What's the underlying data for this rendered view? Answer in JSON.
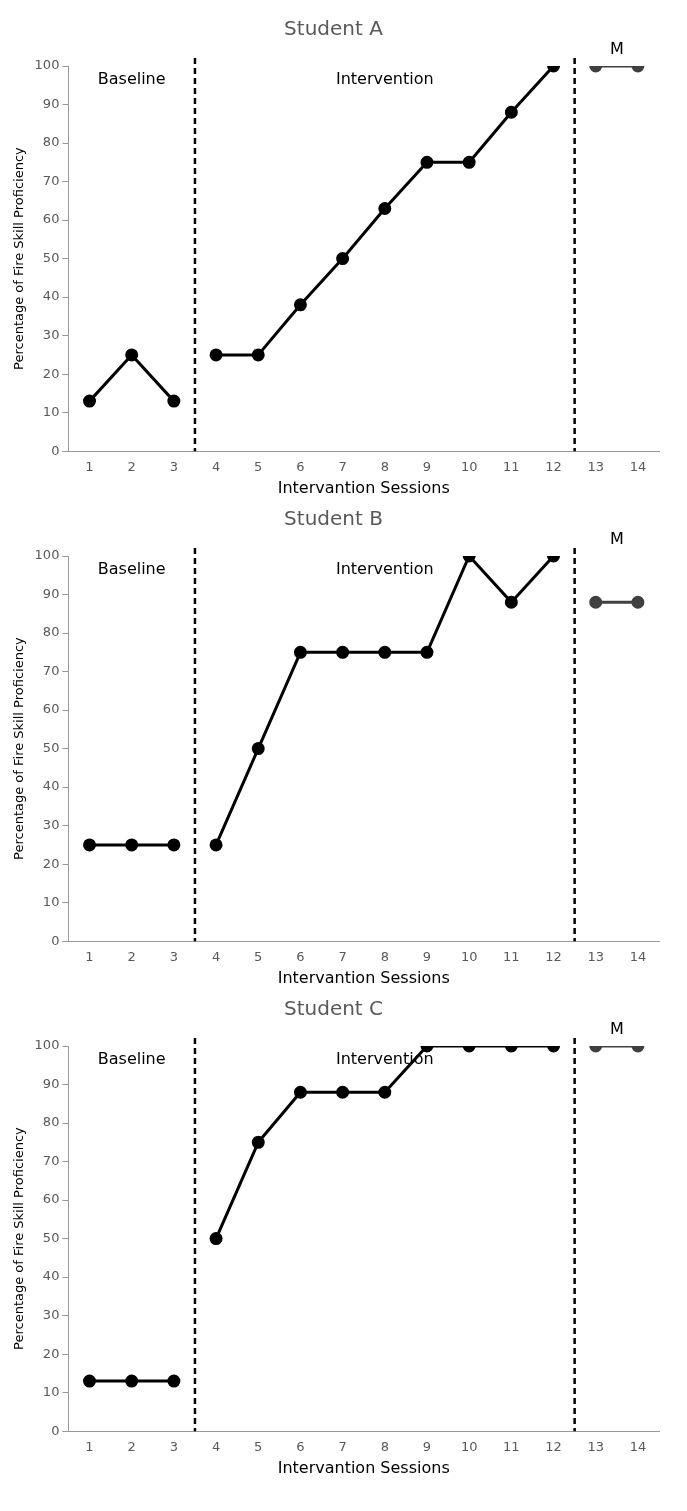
{
  "chart_data": [
    {
      "type": "line",
      "title": "Student A",
      "xlabel": "Intervantion Sessions",
      "ylabel": "Percentage of Fire Skill Proficiency",
      "xlim": [
        0.5,
        14.5
      ],
      "xticks": [
        1,
        2,
        3,
        4,
        5,
        6,
        7,
        8,
        9,
        10,
        11,
        12,
        13,
        14
      ],
      "ylim": [
        0,
        100
      ],
      "yticks": [
        0,
        10,
        20,
        30,
        40,
        50,
        60,
        70,
        80,
        90,
        100
      ],
      "grid": false,
      "legend": false,
      "marker": "circle",
      "line_style": "solid",
      "series": [
        {
          "color": "#000000",
          "x": [
            1,
            2,
            3
          ],
          "values": [
            13,
            25,
            13
          ]
        },
        {
          "color": "#000000",
          "x": [
            4,
            5,
            6,
            7,
            8,
            9,
            10,
            11,
            12
          ],
          "values": [
            25,
            25,
            38,
            50,
            63,
            75,
            75,
            88,
            100
          ]
        },
        {
          "color": "#404040",
          "x": [
            13,
            14
          ],
          "values": [
            100,
            100
          ]
        }
      ],
      "ref_lines": [
        {
          "axis": "x",
          "value": 3.5,
          "line_style": "dashed"
        },
        {
          "axis": "x",
          "value": 12.5,
          "line_style": "dashed"
        }
      ],
      "annotations": [
        "Baseline",
        "Intervention",
        "M"
      ]
    },
    {
      "type": "line",
      "title": "Student B",
      "xlabel": "Intervantion Sessions",
      "ylabel": "Percentage of Fire Skill Proficiency",
      "xlim": [
        0.5,
        14.5
      ],
      "xticks": [
        1,
        2,
        3,
        4,
        5,
        6,
        7,
        8,
        9,
        10,
        11,
        12,
        13,
        14
      ],
      "ylim": [
        0,
        100
      ],
      "yticks": [
        0,
        10,
        20,
        30,
        40,
        50,
        60,
        70,
        80,
        90,
        100
      ],
      "grid": false,
      "legend": false,
      "marker": "circle",
      "line_style": "solid",
      "series": [
        {
          "color": "#000000",
          "x": [
            1,
            2,
            3
          ],
          "values": [
            25,
            25,
            25
          ]
        },
        {
          "color": "#000000",
          "x": [
            4,
            5,
            6,
            7,
            8,
            9,
            10,
            11,
            12
          ],
          "values": [
            25,
            50,
            75,
            75,
            75,
            75,
            100,
            88,
            100
          ]
        },
        {
          "color": "#404040",
          "x": [
            13,
            14
          ],
          "values": [
            88,
            88
          ]
        }
      ],
      "ref_lines": [
        {
          "axis": "x",
          "value": 3.5,
          "line_style": "dashed"
        },
        {
          "axis": "x",
          "value": 12.5,
          "line_style": "dashed"
        }
      ],
      "annotations": [
        "Baseline",
        "Intervention",
        "M"
      ]
    },
    {
      "type": "line",
      "title": "Student C",
      "xlabel": "Intervantion Sessions",
      "ylabel": "Percentage of Fire Skill Proficiency",
      "xlim": [
        0.5,
        14.5
      ],
      "xticks": [
        1,
        2,
        3,
        4,
        5,
        6,
        7,
        8,
        9,
        10,
        11,
        12,
        13,
        14
      ],
      "ylim": [
        0,
        100
      ],
      "yticks": [
        0,
        10,
        20,
        30,
        40,
        50,
        60,
        70,
        80,
        90,
        100
      ],
      "grid": false,
      "legend": false,
      "marker": "circle",
      "line_style": "solid",
      "series": [
        {
          "color": "#000000",
          "x": [
            1,
            2,
            3
          ],
          "values": [
            13,
            13,
            13
          ]
        },
        {
          "color": "#000000",
          "x": [
            4,
            5,
            6,
            7,
            8,
            9,
            10,
            11,
            12
          ],
          "values": [
            50,
            75,
            88,
            88,
            88,
            100,
            100,
            100,
            100
          ]
        },
        {
          "color": "#404040",
          "x": [
            13,
            14
          ],
          "values": [
            100,
            100
          ]
        }
      ],
      "ref_lines": [
        {
          "axis": "x",
          "value": 3.5,
          "line_style": "dashed"
        },
        {
          "axis": "x",
          "value": 12.5,
          "line_style": "dashed"
        }
      ],
      "annotations": [
        "Baseline",
        "Intervention",
        "M"
      ]
    }
  ]
}
